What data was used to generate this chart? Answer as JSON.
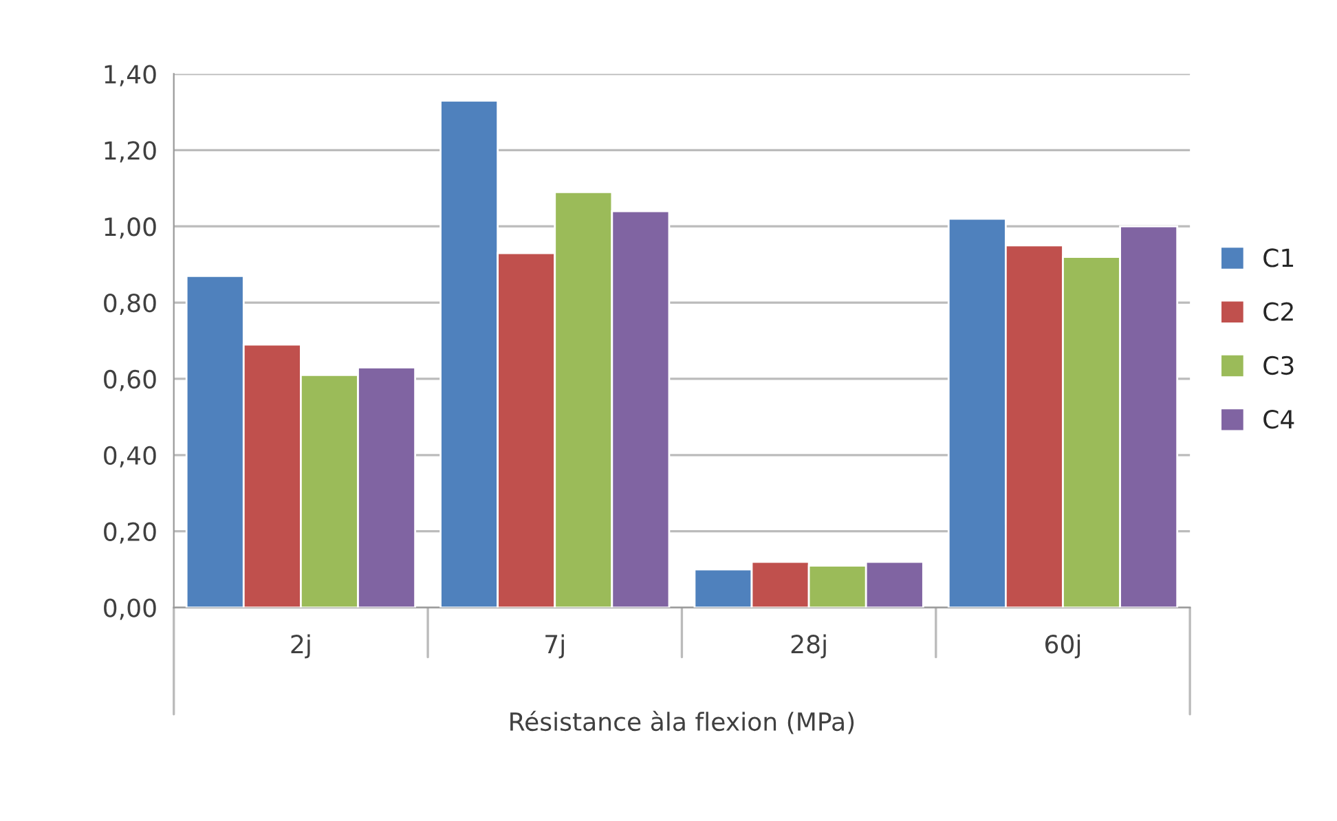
{
  "chart_data": {
    "type": "bar",
    "xlabel": "Résistance àla flexion (MPa)",
    "categories": [
      "2j",
      "7j",
      "28j",
      "60j"
    ],
    "series": [
      {
        "name": "C1",
        "color": "#4f81bd",
        "values": [
          0.87,
          1.33,
          0.1,
          1.02
        ]
      },
      {
        "name": "C2",
        "color": "#c0504d",
        "values": [
          0.69,
          0.93,
          0.12,
          0.95
        ]
      },
      {
        "name": "C3",
        "color": "#9bbb59",
        "values": [
          0.61,
          1.09,
          0.11,
          0.92
        ]
      },
      {
        "name": "C4",
        "color": "#8064a2",
        "values": [
          0.63,
          1.04,
          0.12,
          1.0
        ]
      }
    ],
    "ylim": [
      0,
      1.4
    ],
    "yticks": [
      {
        "value": 0,
        "label": "0,00"
      },
      {
        "value": 0.2,
        "label": "0,20"
      },
      {
        "value": 0.4,
        "label": "0,40"
      },
      {
        "value": 0.6,
        "label": "0,60"
      },
      {
        "value": 0.8,
        "label": "0,80"
      },
      {
        "value": 1.0,
        "label": "1,00"
      },
      {
        "value": 1.2,
        "label": "1,20"
      },
      {
        "value": 1.4,
        "label": "1,40"
      }
    ],
    "grid": "y",
    "legend": "right"
  }
}
